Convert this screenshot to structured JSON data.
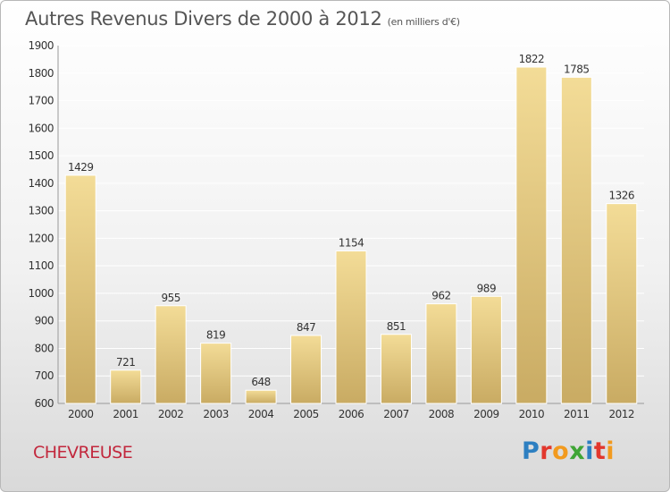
{
  "header": {
    "title": "Autres Revenus Divers de 2000 à 2012",
    "subtitle": "(en milliers d'€)"
  },
  "footer": {
    "town": "CHEVREUSE",
    "brand_letters": [
      {
        "ch": "P",
        "color": "#2d7fc1"
      },
      {
        "ch": "r",
        "color": "#e2372d"
      },
      {
        "ch": "o",
        "color": "#f29a1e"
      },
      {
        "ch": "x",
        "color": "#3fa535"
      },
      {
        "ch": "i",
        "color": "#2d7fc1"
      },
      {
        "ch": "t",
        "color": "#e2372d"
      },
      {
        "ch": "i",
        "color": "#f29a1e"
      }
    ]
  },
  "colors": {
    "bar_top": "#f3dc97",
    "bar_bottom": "#c9ab63",
    "grid": "#ffffff",
    "axis_text": "#333333"
  },
  "chart_data": {
    "type": "bar",
    "title": "Autres Revenus Divers de 2000 à 2012",
    "subtitle": "(en milliers d'€)",
    "categories": [
      "2000",
      "2001",
      "2002",
      "2003",
      "2004",
      "2005",
      "2006",
      "2007",
      "2008",
      "2009",
      "2010",
      "2011",
      "2012"
    ],
    "values": [
      1429,
      721,
      955,
      819,
      648,
      847,
      1154,
      851,
      962,
      989,
      1822,
      1785,
      1326
    ],
    "ylim": [
      600,
      1900
    ],
    "yticks": [
      600,
      700,
      800,
      900,
      1000,
      1100,
      1200,
      1300,
      1400,
      1500,
      1600,
      1700,
      1800,
      1900
    ],
    "xlabel": "",
    "ylabel": "",
    "grid": true,
    "legend": "none"
  }
}
